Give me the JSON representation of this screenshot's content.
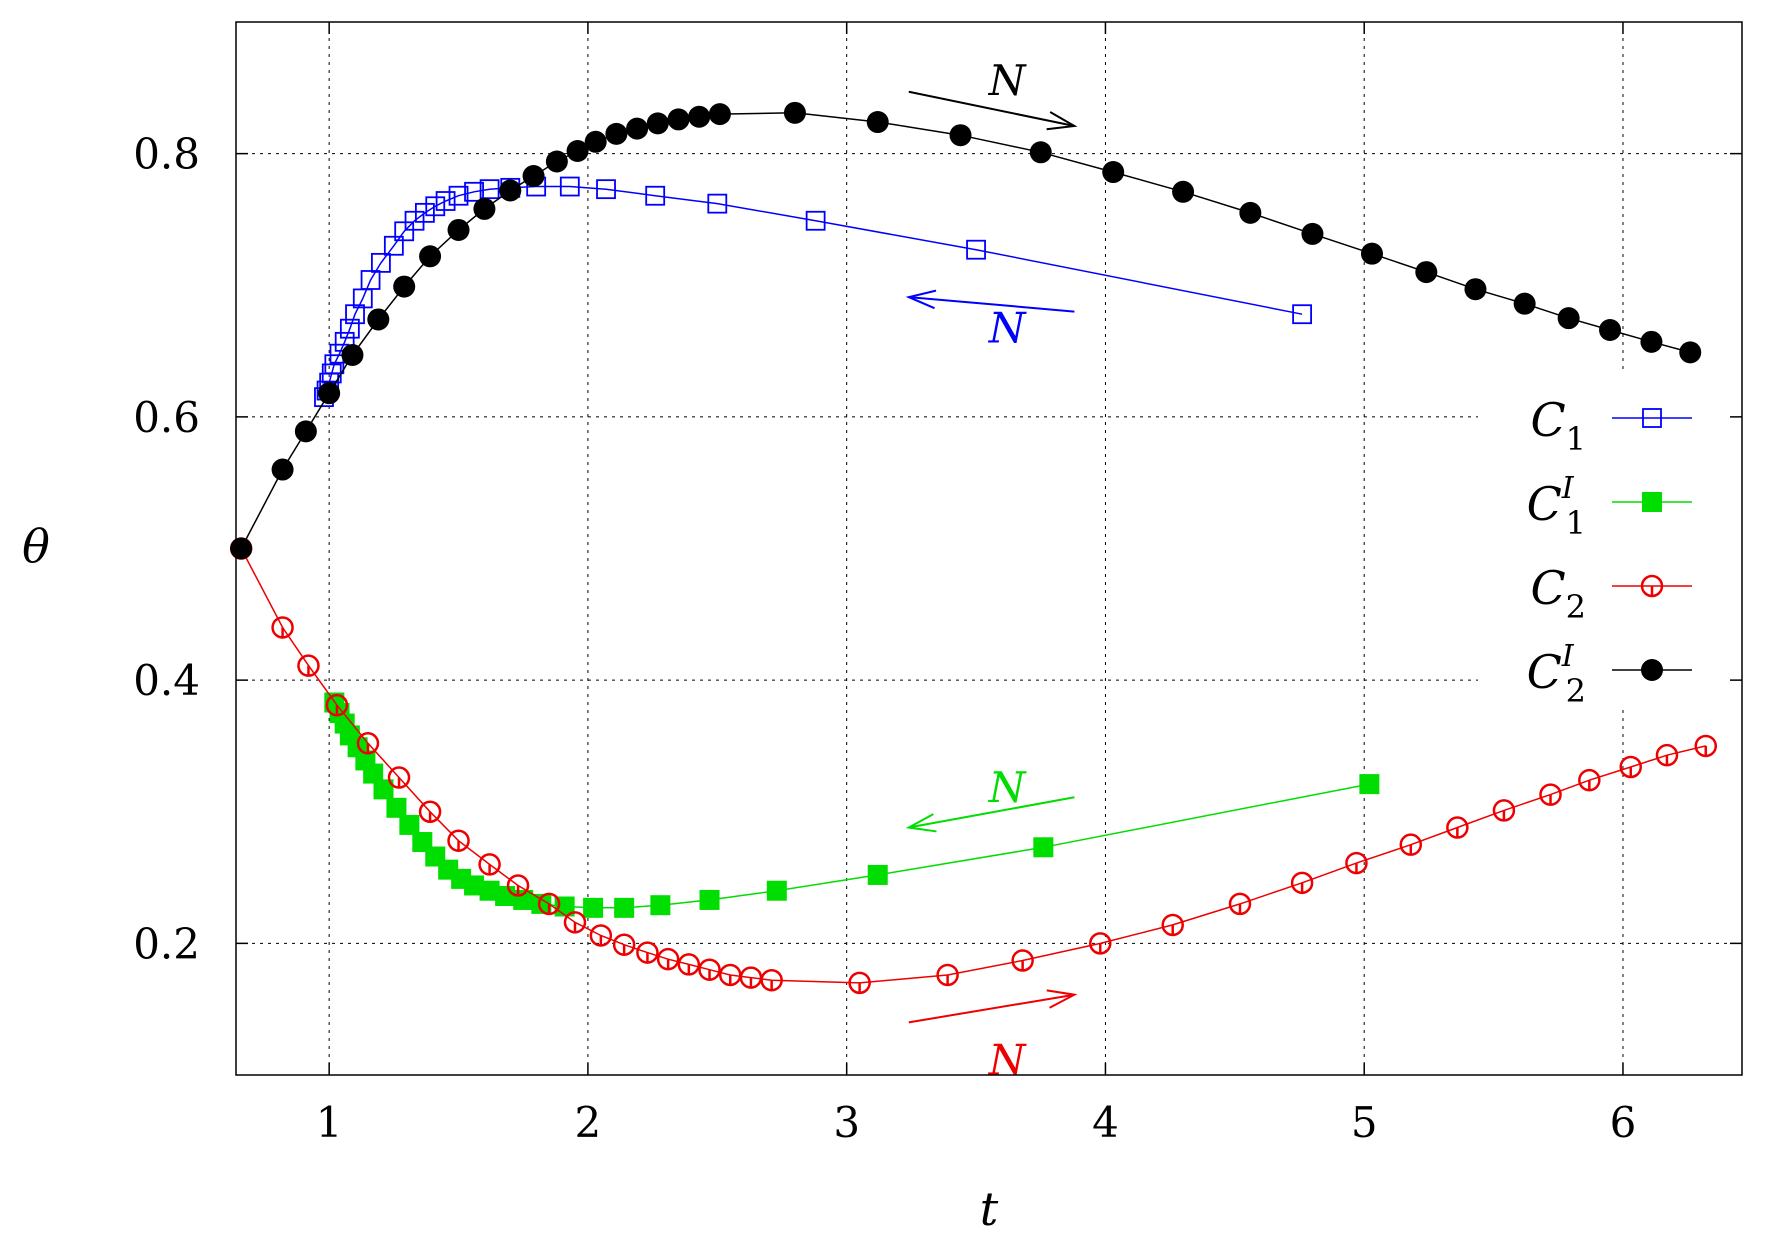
{
  "chart_data": {
    "type": "line",
    "xlabel": "t",
    "ylabel": "θ",
    "xlim": [
      0.64,
      6.46
    ],
    "ylim": [
      0.1,
      0.9
    ],
    "xticks": [
      1,
      2,
      3,
      4,
      5,
      6
    ],
    "yticks": [
      0.2,
      0.4,
      0.6,
      0.8
    ],
    "xtick_labels": [
      "1",
      "2",
      "3",
      "4",
      "5",
      "6"
    ],
    "ytick_labels": [
      "0.2",
      "0.4",
      "0.6",
      "0.8"
    ],
    "grid": true,
    "legend_position": "right",
    "series": [
      {
        "name": "C1",
        "legend_base": "C",
        "legend_sub": "1",
        "legend_sup": "",
        "color": "#0000ff",
        "marker": "open-square",
        "points": [
          [
            0.98,
            0.615
          ],
          [
            0.99,
            0.62
          ],
          [
            1.0,
            0.626
          ],
          [
            1.01,
            0.633
          ],
          [
            1.02,
            0.64
          ],
          [
            1.04,
            0.648
          ],
          [
            1.06,
            0.657
          ],
          [
            1.08,
            0.667
          ],
          [
            1.1,
            0.678
          ],
          [
            1.13,
            0.69
          ],
          [
            1.16,
            0.704
          ],
          [
            1.2,
            0.717
          ],
          [
            1.25,
            0.73
          ],
          [
            1.29,
            0.741
          ],
          [
            1.33,
            0.749
          ],
          [
            1.37,
            0.755
          ],
          [
            1.41,
            0.76
          ],
          [
            1.45,
            0.764
          ],
          [
            1.5,
            0.768
          ],
          [
            1.56,
            0.771
          ],
          [
            1.62,
            0.773
          ],
          [
            1.7,
            0.774
          ],
          [
            1.8,
            0.775
          ],
          [
            1.93,
            0.775
          ],
          [
            2.07,
            0.773
          ],
          [
            2.26,
            0.768
          ],
          [
            2.5,
            0.762
          ],
          [
            2.88,
            0.749
          ],
          [
            3.5,
            0.727
          ],
          [
            4.76,
            0.678
          ]
        ]
      },
      {
        "name": "C1^I",
        "legend_base": "C",
        "legend_sub": "1",
        "legend_sup": "I",
        "color": "#00dd00",
        "marker": "filled-square",
        "points": [
          [
            1.02,
            0.383
          ],
          [
            1.04,
            0.375
          ],
          [
            1.06,
            0.367
          ],
          [
            1.08,
            0.358
          ],
          [
            1.11,
            0.349
          ],
          [
            1.14,
            0.339
          ],
          [
            1.17,
            0.329
          ],
          [
            1.21,
            0.317
          ],
          [
            1.26,
            0.303
          ],
          [
            1.31,
            0.29
          ],
          [
            1.36,
            0.277
          ],
          [
            1.41,
            0.266
          ],
          [
            1.46,
            0.256
          ],
          [
            1.51,
            0.249
          ],
          [
            1.56,
            0.244
          ],
          [
            1.62,
            0.24
          ],
          [
            1.68,
            0.236
          ],
          [
            1.75,
            0.233
          ],
          [
            1.82,
            0.23
          ],
          [
            1.91,
            0.228
          ],
          [
            2.02,
            0.227
          ],
          [
            2.14,
            0.227
          ],
          [
            2.28,
            0.229
          ],
          [
            2.47,
            0.233
          ],
          [
            2.73,
            0.24
          ],
          [
            3.12,
            0.252
          ],
          [
            3.76,
            0.273
          ],
          [
            5.02,
            0.321
          ]
        ]
      },
      {
        "name": "C2",
        "legend_base": "C",
        "legend_sub": "2",
        "legend_sup": "",
        "color": "#ee0000",
        "marker": "open-circle",
        "points": [
          [
            0.66,
            0.5
          ],
          [
            0.82,
            0.44
          ],
          [
            0.92,
            0.411
          ],
          [
            1.03,
            0.381
          ],
          [
            1.15,
            0.352
          ],
          [
            1.27,
            0.326
          ],
          [
            1.39,
            0.3
          ],
          [
            1.5,
            0.278
          ],
          [
            1.62,
            0.26
          ],
          [
            1.73,
            0.244
          ],
          [
            1.85,
            0.23
          ],
          [
            1.95,
            0.216
          ],
          [
            2.05,
            0.206
          ],
          [
            2.14,
            0.199
          ],
          [
            2.23,
            0.193
          ],
          [
            2.31,
            0.188
          ],
          [
            2.39,
            0.184
          ],
          [
            2.47,
            0.18
          ],
          [
            2.55,
            0.176
          ],
          [
            2.63,
            0.174
          ],
          [
            2.71,
            0.172
          ],
          [
            3.05,
            0.17
          ],
          [
            3.39,
            0.176
          ],
          [
            3.68,
            0.187
          ],
          [
            3.98,
            0.2
          ],
          [
            4.26,
            0.214
          ],
          [
            4.52,
            0.23
          ],
          [
            4.76,
            0.246
          ],
          [
            4.97,
            0.261
          ],
          [
            5.18,
            0.275
          ],
          [
            5.36,
            0.288
          ],
          [
            5.54,
            0.301
          ],
          [
            5.72,
            0.313
          ],
          [
            5.87,
            0.324
          ],
          [
            6.03,
            0.334
          ],
          [
            6.17,
            0.343
          ],
          [
            6.32,
            0.35
          ]
        ]
      },
      {
        "name": "C2^I",
        "legend_base": "C",
        "legend_sub": "2",
        "legend_sup": "I",
        "color": "#000000",
        "marker": "filled-circle",
        "points": [
          [
            0.66,
            0.5
          ],
          [
            0.82,
            0.56
          ],
          [
            0.91,
            0.589
          ],
          [
            1.0,
            0.618
          ],
          [
            1.09,
            0.647
          ],
          [
            1.19,
            0.674
          ],
          [
            1.29,
            0.699
          ],
          [
            1.39,
            0.722
          ],
          [
            1.5,
            0.742
          ],
          [
            1.6,
            0.758
          ],
          [
            1.7,
            0.772
          ],
          [
            1.79,
            0.783
          ],
          [
            1.88,
            0.794
          ],
          [
            1.96,
            0.802
          ],
          [
            2.03,
            0.809
          ],
          [
            2.11,
            0.815
          ],
          [
            2.19,
            0.819
          ],
          [
            2.27,
            0.823
          ],
          [
            2.35,
            0.826
          ],
          [
            2.43,
            0.828
          ],
          [
            2.51,
            0.83
          ],
          [
            2.8,
            0.831
          ],
          [
            3.12,
            0.824
          ],
          [
            3.44,
            0.814
          ],
          [
            3.75,
            0.801
          ],
          [
            4.03,
            0.786
          ],
          [
            4.3,
            0.771
          ],
          [
            4.56,
            0.755
          ],
          [
            4.8,
            0.739
          ],
          [
            5.03,
            0.724
          ],
          [
            5.24,
            0.71
          ],
          [
            5.43,
            0.697
          ],
          [
            5.62,
            0.686
          ],
          [
            5.79,
            0.675
          ],
          [
            5.95,
            0.666
          ],
          [
            6.11,
            0.657
          ],
          [
            6.26,
            0.649
          ]
        ]
      }
    ],
    "annotations": [
      {
        "label": "N",
        "color": "#000000",
        "direction": "right",
        "from": [
          3.24,
          0.847
        ],
        "to": [
          3.88,
          0.821
        ],
        "label_at": [
          3.62,
          0.855
        ]
      },
      {
        "label": "N",
        "color": "#0000ff",
        "direction": "left",
        "from": [
          3.88,
          0.68
        ],
        "to": [
          3.24,
          0.691
        ],
        "label_at": [
          3.62,
          0.667
        ]
      },
      {
        "label": "N",
        "color": "#00dd00",
        "direction": "left",
        "from": [
          3.88,
          0.311
        ],
        "to": [
          3.24,
          0.288
        ],
        "label_at": [
          3.62,
          0.318
        ]
      },
      {
        "label": "N",
        "color": "#ee0000",
        "direction": "right",
        "from": [
          3.24,
          0.14
        ],
        "to": [
          3.88,
          0.161
        ],
        "label_at": [
          3.62,
          0.111
        ]
      }
    ]
  }
}
